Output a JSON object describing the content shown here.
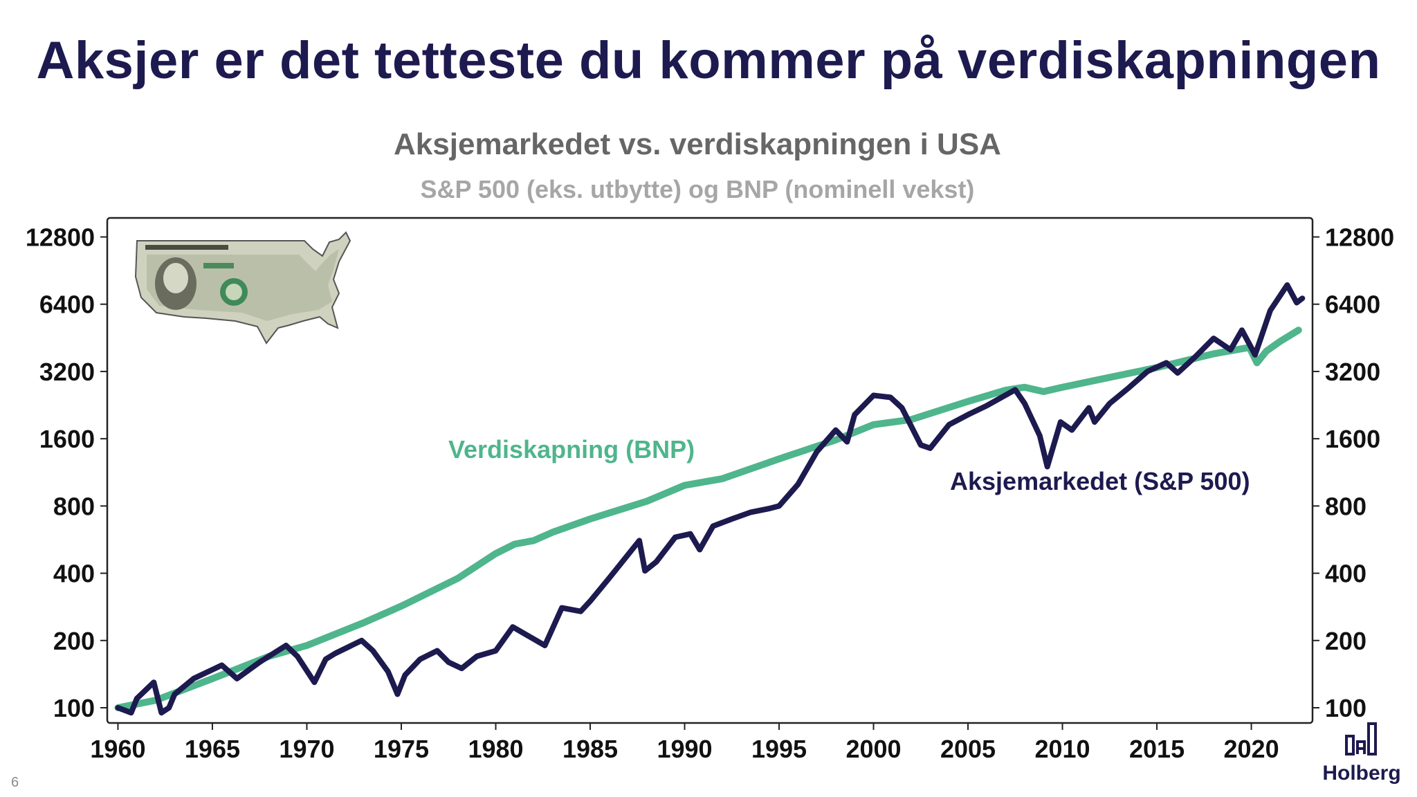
{
  "slide": {
    "title": "Aksjer er det tetteste du kommer på verdiskapningen",
    "page_number": "6",
    "brand": "Holberg"
  },
  "colors": {
    "navy": "#1d1a4f",
    "green": "#4fb58c",
    "subtitle_gray": "#a6a6a6",
    "title_gray": "#666666"
  },
  "chart_data": {
    "type": "line",
    "title": "Aksjemarkedet vs. verdiskapningen i USA",
    "subtitle": "S&P 500 (eks. utbytte) og BNP (nominell vekst)",
    "y_scale": "log2",
    "ylim": [
      100,
      14500
    ],
    "xlim": [
      1959.8,
      2022.8
    ],
    "y_ticks": [
      100,
      200,
      400,
      800,
      1600,
      3200,
      6400,
      12800
    ],
    "x_ticks": [
      1960,
      1965,
      1970,
      1975,
      1980,
      1985,
      1990,
      1995,
      2000,
      2005,
      2010,
      2015,
      2020
    ],
    "legend": "inline labels",
    "series": [
      {
        "name": "Verdiskapning (BNP)",
        "label": "Verdiskapning (BNP)",
        "color": "#4fb58c",
        "points": [
          [
            1960,
            100
          ],
          [
            1962,
            108
          ],
          [
            1965,
            135
          ],
          [
            1968,
            170
          ],
          [
            1970,
            190
          ],
          [
            1973,
            240
          ],
          [
            1975,
            285
          ],
          [
            1978,
            380
          ],
          [
            1980,
            490
          ],
          [
            1981,
            540
          ],
          [
            1982,
            560
          ],
          [
            1983,
            610
          ],
          [
            1985,
            700
          ],
          [
            1988,
            840
          ],
          [
            1990,
            990
          ],
          [
            1992,
            1060
          ],
          [
            1995,
            1300
          ],
          [
            1998,
            1580
          ],
          [
            2000,
            1850
          ],
          [
            2002,
            1950
          ],
          [
            2005,
            2350
          ],
          [
            2007,
            2640
          ],
          [
            2008,
            2720
          ],
          [
            2009,
            2600
          ],
          [
            2010,
            2720
          ],
          [
            2012,
            2950
          ],
          [
            2015,
            3330
          ],
          [
            2018,
            3840
          ],
          [
            2019.9,
            4100
          ],
          [
            2020.3,
            3500
          ],
          [
            2020.8,
            3950
          ],
          [
            2021.5,
            4350
          ],
          [
            2022.5,
            4900
          ]
        ]
      },
      {
        "name": "Aksjemarkedet (S&P 500)",
        "label": "Aksjemarkedet (S&P 500)",
        "color": "#1d1a4f",
        "points": [
          [
            1960,
            100
          ],
          [
            1960.7,
            95
          ],
          [
            1961,
            110
          ],
          [
            1961.9,
            130
          ],
          [
            1962.3,
            95
          ],
          [
            1962.7,
            100
          ],
          [
            1963,
            115
          ],
          [
            1964,
            135
          ],
          [
            1965.5,
            155
          ],
          [
            1966.3,
            135
          ],
          [
            1967.5,
            160
          ],
          [
            1968.9,
            190
          ],
          [
            1969.5,
            170
          ],
          [
            1970.4,
            130
          ],
          [
            1971,
            165
          ],
          [
            1971.5,
            175
          ],
          [
            1972.9,
            200
          ],
          [
            1973.5,
            180
          ],
          [
            1974.3,
            145
          ],
          [
            1974.8,
            115
          ],
          [
            1975.2,
            140
          ],
          [
            1976,
            165
          ],
          [
            1976.9,
            180
          ],
          [
            1977.5,
            160
          ],
          [
            1978.2,
            150
          ],
          [
            1979,
            170
          ],
          [
            1980,
            180
          ],
          [
            1980.9,
            230
          ],
          [
            1981.5,
            215
          ],
          [
            1982.6,
            190
          ],
          [
            1983.5,
            280
          ],
          [
            1984.5,
            270
          ],
          [
            1985,
            300
          ],
          [
            1986,
            380
          ],
          [
            1987.6,
            560
          ],
          [
            1987.9,
            410
          ],
          [
            1988.5,
            450
          ],
          [
            1989.5,
            580
          ],
          [
            1990.3,
            600
          ],
          [
            1990.8,
            510
          ],
          [
            1991.5,
            650
          ],
          [
            1992.5,
            700
          ],
          [
            1993.5,
            750
          ],
          [
            1994.5,
            780
          ],
          [
            1995,
            800
          ],
          [
            1996,
            1000
          ],
          [
            1997,
            1400
          ],
          [
            1998,
            1750
          ],
          [
            1998.6,
            1550
          ],
          [
            1999,
            2050
          ],
          [
            2000,
            2500
          ],
          [
            2000.9,
            2450
          ],
          [
            2001.5,
            2200
          ],
          [
            2002.5,
            1500
          ],
          [
            2003,
            1450
          ],
          [
            2004,
            1850
          ],
          [
            2005,
            2050
          ],
          [
            2006,
            2250
          ],
          [
            2007.5,
            2650
          ],
          [
            2008,
            2300
          ],
          [
            2008.8,
            1650
          ],
          [
            2009.2,
            1200
          ],
          [
            2009.9,
            1900
          ],
          [
            2010.5,
            1750
          ],
          [
            2011.4,
            2200
          ],
          [
            2011.7,
            1900
          ],
          [
            2012.5,
            2300
          ],
          [
            2013.5,
            2700
          ],
          [
            2014.5,
            3200
          ],
          [
            2015.5,
            3500
          ],
          [
            2016.1,
            3150
          ],
          [
            2017,
            3700
          ],
          [
            2018,
            4500
          ],
          [
            2018.9,
            4000
          ],
          [
            2019.5,
            4900
          ],
          [
            2020.2,
            3800
          ],
          [
            2020.5,
            4500
          ],
          [
            2021,
            6000
          ],
          [
            2021.9,
            7800
          ],
          [
            2022.4,
            6500
          ],
          [
            2022.7,
            6800
          ]
        ]
      }
    ]
  }
}
